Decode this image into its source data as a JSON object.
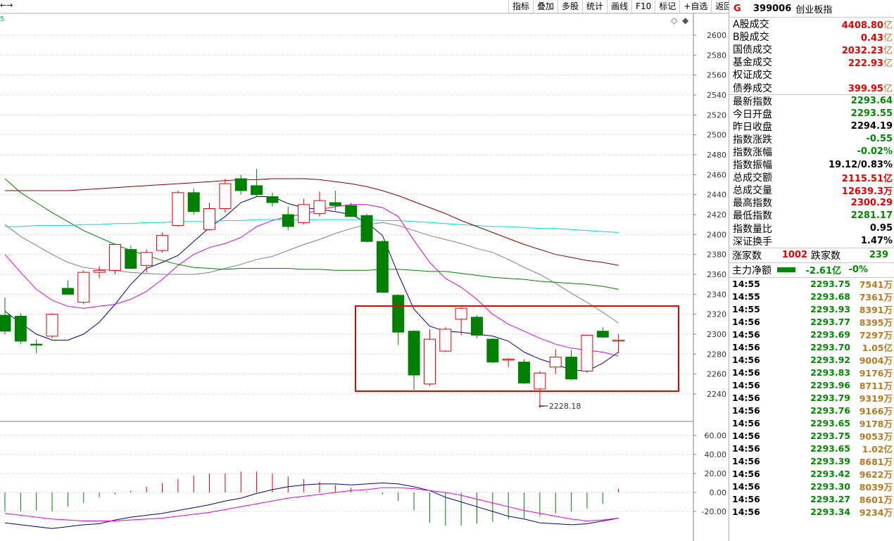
{
  "toolbar": [
    "指标",
    "叠加",
    "多股",
    "统计",
    "画线",
    "F10",
    "标记",
    "+自选",
    "返回"
  ],
  "top_left": "←→",
  "period_label": "5",
  "low_marker": "2228.18",
  "quote": {
    "flag": "G",
    "code": "399006",
    "name": "创业板指",
    "turnover": [
      {
        "label": "A股成交",
        "value": "4408.80",
        "unit": "亿"
      },
      {
        "label": "B股成交",
        "value": "0.43",
        "unit": "亿"
      },
      {
        "label": "国债成交",
        "value": "2032.23",
        "unit": "亿"
      },
      {
        "label": "基金成交",
        "value": "222.93",
        "unit": "亿"
      },
      {
        "label": "权证成交",
        "value": "",
        "unit": ""
      },
      {
        "label": "债券成交",
        "value": "399.95",
        "unit": "亿"
      }
    ],
    "stats": [
      {
        "label": "最新指数",
        "value": "2293.64",
        "color": "green"
      },
      {
        "label": "今日开盘",
        "value": "2293.55",
        "color": "green"
      },
      {
        "label": "昨日收盘",
        "value": "2294.19",
        "color": "black"
      },
      {
        "label": "指数涨跌",
        "value": "-0.55",
        "color": "green"
      },
      {
        "label": "指数涨幅",
        "value": "-0.02%",
        "color": "green"
      },
      {
        "label": "指数振幅",
        "value": "19.12/0.83%",
        "color": "black"
      },
      {
        "label": "总成交额",
        "value": "2115.51亿",
        "color": "red"
      },
      {
        "label": "总成交量",
        "value": "12639.3万",
        "color": "red"
      },
      {
        "label": "最高指数",
        "value": "2300.29",
        "color": "red"
      },
      {
        "label": "最低指数",
        "value": "2281.17",
        "color": "green"
      },
      {
        "label": "指数量比",
        "value": "0.95",
        "color": "black"
      },
      {
        "label": "深证换手",
        "value": "1.47%",
        "color": "black"
      }
    ],
    "updown": {
      "up_label": "涨家数",
      "up": "1002",
      "down_label": "跌家数",
      "down": "239"
    },
    "mainflow": {
      "label": "主力净额",
      "value": "-2.61亿",
      "pct": "-0%"
    },
    "ticks": [
      {
        "t": "14:55",
        "p": "2293.75",
        "q": "7541",
        "u": "万"
      },
      {
        "t": "14:55",
        "p": "2293.68",
        "q": "7361",
        "u": "万"
      },
      {
        "t": "14:55",
        "p": "2293.93",
        "q": "8391",
        "u": "万"
      },
      {
        "t": "14:56",
        "p": "2293.77",
        "q": "8395",
        "u": "万"
      },
      {
        "t": "14:56",
        "p": "2293.69",
        "q": "7297",
        "u": "万"
      },
      {
        "t": "14:56",
        "p": "2293.70",
        "q": "1.05",
        "u": "亿"
      },
      {
        "t": "14:56",
        "p": "2293.92",
        "q": "9004",
        "u": "万"
      },
      {
        "t": "14:56",
        "p": "2293.83",
        "q": "9176",
        "u": "万"
      },
      {
        "t": "14:56",
        "p": "2293.96",
        "q": "8711",
        "u": "万"
      },
      {
        "t": "14:56",
        "p": "2293.79",
        "q": "9319",
        "u": "万"
      },
      {
        "t": "14:56",
        "p": "2293.76",
        "q": "9166",
        "u": "万"
      },
      {
        "t": "14:56",
        "p": "2293.65",
        "q": "9178",
        "u": "万"
      },
      {
        "t": "14:56",
        "p": "2293.75",
        "q": "9053",
        "u": "万"
      },
      {
        "t": "14:56",
        "p": "2293.65",
        "q": "1.02",
        "u": "亿"
      },
      {
        "t": "14:56",
        "p": "2293.39",
        "q": "8681",
        "u": "万"
      },
      {
        "t": "14:56",
        "p": "2293.42",
        "q": "9622",
        "u": "万"
      },
      {
        "t": "14:56",
        "p": "2293.30",
        "q": "8039",
        "u": "万"
      },
      {
        "t": "14:56",
        "p": "2293.27",
        "q": "8601",
        "u": "万"
      },
      {
        "t": "14:56",
        "p": "2293.34",
        "q": "9234",
        "u": "万"
      }
    ]
  },
  "chart_data": [
    {
      "type": "candlestick",
      "ylim": [
        2228,
        2610
      ],
      "yticks": [
        "2600",
        "2580",
        "2560",
        "2540",
        "2520",
        "2500",
        "2480",
        "2460",
        "2440",
        "2420",
        "2400",
        "2380",
        "2360",
        "2340",
        "2320",
        "2300",
        "2280",
        "2260",
        "2240"
      ],
      "candles": [
        {
          "o": 2319,
          "h": 2337,
          "l": 2300,
          "c": 2303
        },
        {
          "o": 2318,
          "h": 2321,
          "l": 2290,
          "c": 2293
        },
        {
          "o": 2290,
          "h": 2295,
          "l": 2281,
          "c": 2289
        },
        {
          "o": 2298,
          "h": 2321,
          "l": 2296,
          "c": 2320
        },
        {
          "o": 2346,
          "h": 2354,
          "l": 2342,
          "c": 2340
        },
        {
          "o": 2332,
          "h": 2364,
          "l": 2330,
          "c": 2362
        },
        {
          "o": 2362,
          "h": 2368,
          "l": 2356,
          "c": 2364
        },
        {
          "o": 2364,
          "h": 2391,
          "l": 2360,
          "c": 2390
        },
        {
          "o": 2385,
          "h": 2389,
          "l": 2367,
          "c": 2366
        },
        {
          "o": 2369,
          "h": 2385,
          "l": 2362,
          "c": 2382
        },
        {
          "o": 2384,
          "h": 2402,
          "l": 2382,
          "c": 2399
        },
        {
          "o": 2409,
          "h": 2444,
          "l": 2408,
          "c": 2442
        },
        {
          "o": 2442,
          "h": 2446,
          "l": 2420,
          "c": 2423
        },
        {
          "o": 2405,
          "h": 2432,
          "l": 2404,
          "c": 2426
        },
        {
          "o": 2426,
          "h": 2456,
          "l": 2422,
          "c": 2451
        },
        {
          "o": 2456,
          "h": 2460,
          "l": 2440,
          "c": 2444
        },
        {
          "o": 2449,
          "h": 2466,
          "l": 2438,
          "c": 2440
        },
        {
          "o": 2438,
          "h": 2442,
          "l": 2428,
          "c": 2432
        },
        {
          "o": 2420,
          "h": 2428,
          "l": 2404,
          "c": 2408
        },
        {
          "o": 2412,
          "h": 2436,
          "l": 2410,
          "c": 2430
        },
        {
          "o": 2421,
          "h": 2443,
          "l": 2418,
          "c": 2434
        },
        {
          "o": 2432,
          "h": 2444,
          "l": 2424,
          "c": 2429
        },
        {
          "o": 2429,
          "h": 2432,
          "l": 2418,
          "c": 2418
        },
        {
          "o": 2419,
          "h": 2421,
          "l": 2392,
          "c": 2393
        },
        {
          "o": 2393,
          "h": 2394,
          "l": 2342,
          "c": 2342
        },
        {
          "o": 2339,
          "h": 2340,
          "l": 2289,
          "c": 2302
        },
        {
          "o": 2303,
          "h": 2304,
          "l": 2244,
          "c": 2259
        },
        {
          "o": 2250,
          "h": 2305,
          "l": 2248,
          "c": 2295
        },
        {
          "o": 2283,
          "h": 2307,
          "l": 2282,
          "c": 2305
        },
        {
          "o": 2315,
          "h": 2327,
          "l": 2299,
          "c": 2326
        },
        {
          "o": 2317,
          "h": 2319,
          "l": 2296,
          "c": 2299
        },
        {
          "o": 2295,
          "h": 2296,
          "l": 2271,
          "c": 2272
        },
        {
          "o": 2275,
          "h": 2276,
          "l": 2267,
          "c": 2275
        },
        {
          "o": 2272,
          "h": 2275,
          "l": 2250,
          "c": 2251
        },
        {
          "o": 2245,
          "h": 2263,
          "l": 2228,
          "c": 2261
        },
        {
          "o": 2267,
          "h": 2285,
          "l": 2260,
          "c": 2277
        },
        {
          "o": 2277,
          "h": 2284,
          "l": 2254,
          "c": 2255
        },
        {
          "o": 2263,
          "h": 2299,
          "l": 2261,
          "c": 2299
        },
        {
          "o": 2303,
          "h": 2307,
          "l": 2296,
          "c": 2297
        },
        {
          "o": 2293,
          "h": 2300,
          "l": 2281,
          "c": 2294
        }
      ],
      "moving_averages": [
        {
          "color": "#000080",
          "values": [
            2323,
            2311,
            2300,
            2294,
            2294,
            2300,
            2312,
            2330,
            2350,
            2366,
            2372,
            2379,
            2393,
            2407,
            2418,
            2432,
            2438,
            2438,
            2431,
            2427,
            2425,
            2423,
            2420,
            2412,
            2399,
            2360,
            2325,
            2308,
            2303,
            2302,
            2300,
            2298,
            2293,
            2282,
            2275,
            2270,
            2264,
            2263,
            2271,
            2282
          ]
        },
        {
          "color": "#e000e0",
          "values": [
            2380,
            2362,
            2345,
            2334,
            2328,
            2326,
            2328,
            2330,
            2335,
            2343,
            2355,
            2369,
            2380,
            2387,
            2391,
            2397,
            2408,
            2414,
            2418,
            2420,
            2425,
            2428,
            2430,
            2430,
            2427,
            2418,
            2394,
            2372,
            2356,
            2347,
            2335,
            2320,
            2310,
            2303,
            2296,
            2290,
            2286,
            2284,
            2282,
            2278
          ]
        },
        {
          "color": "#808080",
          "values": [
            2410,
            2398,
            2389,
            2380,
            2372,
            2367,
            2365,
            2364,
            2362,
            2361,
            2360,
            2360,
            2360,
            2362,
            2366,
            2370,
            2375,
            2378,
            2384,
            2390,
            2395,
            2401,
            2406,
            2410,
            2412,
            2409,
            2404,
            2399,
            2395,
            2391,
            2386,
            2382,
            2375,
            2367,
            2360,
            2351,
            2341,
            2332,
            2322,
            2311
          ]
        },
        {
          "color": "#008000",
          "values": [
            2456,
            2442,
            2432,
            2422,
            2413,
            2404,
            2397,
            2390,
            2384,
            2379,
            2374,
            2370,
            2367,
            2366,
            2365,
            2366,
            2366,
            2366,
            2366,
            2365,
            2365,
            2364,
            2364,
            2364,
            2365,
            2365,
            2364,
            2363,
            2363,
            2361,
            2359,
            2357,
            2356,
            2355,
            2353,
            2352,
            2351,
            2350,
            2348,
            2345
          ]
        },
        {
          "color": "#00d8d8",
          "values": [
            2408,
            2408,
            2409,
            2409,
            2409,
            2410,
            2410,
            2411,
            2411,
            2412,
            2412,
            2413,
            2413,
            2413,
            2414,
            2414,
            2415,
            2415,
            2415,
            2415,
            2415,
            2415,
            2415,
            2415,
            2414,
            2414,
            2413,
            2412,
            2411,
            2410,
            2409,
            2408,
            2408,
            2407,
            2406,
            2406,
            2405,
            2404,
            2403,
            2402
          ]
        },
        {
          "color": "#800000",
          "values": [
            2444,
            2444,
            2444,
            2444,
            2444,
            2445,
            2446,
            2447,
            2448,
            2449,
            2450,
            2451,
            2452,
            2453,
            2454,
            2455,
            2455,
            2456,
            2456,
            2456,
            2455,
            2453,
            2451,
            2448,
            2444,
            2439,
            2433,
            2427,
            2421,
            2414,
            2408,
            2402,
            2396,
            2390,
            2385,
            2380,
            2377,
            2374,
            2372,
            2369
          ]
        }
      ]
    },
    {
      "type": "bar",
      "ylim": [
        -30,
        67
      ],
      "yticks": [
        "60.00",
        "40.00",
        "20.00",
        "0.00",
        "-20.00"
      ],
      "values": [
        -20,
        -20,
        -19,
        -20,
        -15,
        -11,
        -5,
        -2,
        2,
        6,
        10,
        14,
        18,
        20,
        20,
        22,
        22,
        20,
        17,
        14,
        11,
        8,
        5,
        1,
        -2,
        -9,
        -19,
        -32,
        -35,
        -35,
        -33,
        -31,
        -28,
        -27,
        -25,
        -22,
        -20,
        -17,
        -12,
        4
      ],
      "lines": [
        {
          "color": "#000080",
          "values": [
            -32,
            -34,
            -36,
            -38,
            -36,
            -34,
            -33,
            -29,
            -26,
            -24,
            -22,
            -19,
            -16,
            -13,
            -9,
            -6,
            -1,
            3,
            6,
            8,
            9,
            9,
            8,
            9,
            10,
            9,
            6,
            2,
            -5,
            -10,
            -15,
            -20,
            -25,
            -28,
            -32,
            -33,
            -34,
            -33,
            -30,
            -27
          ]
        },
        {
          "color": "#e000e0",
          "values": [
            -22,
            -24,
            -26,
            -28,
            -29,
            -30,
            -30,
            -30,
            -29,
            -28,
            -27,
            -25,
            -23,
            -21,
            -18,
            -15,
            -12,
            -9,
            -6,
            -4,
            -2,
            0,
            2,
            3,
            5,
            5,
            4,
            2,
            0,
            -3,
            -7,
            -11,
            -15,
            -19,
            -22,
            -25,
            -28,
            -30,
            -29,
            -27
          ]
        }
      ]
    }
  ]
}
